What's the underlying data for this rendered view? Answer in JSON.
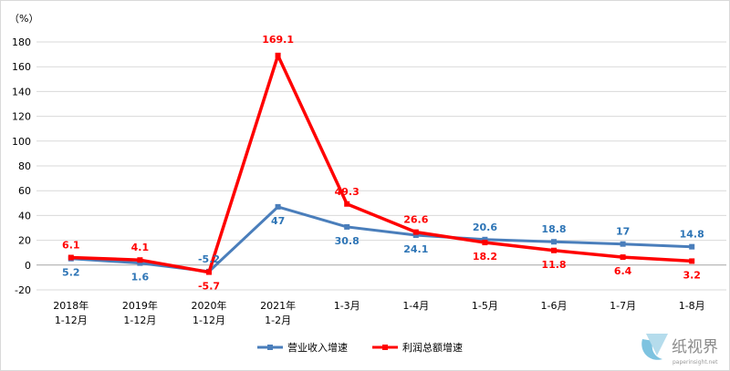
{
  "chart_data": {
    "type": "line",
    "ylabel": "（%）",
    "ylim": [
      -20,
      180
    ],
    "yticks": [
      -20,
      0,
      20,
      40,
      60,
      80,
      100,
      120,
      140,
      160,
      180
    ],
    "grid": true,
    "legend_position": "bottom",
    "categories": [
      [
        "2018年",
        "1-12月"
      ],
      [
        "2019年",
        "1-12月"
      ],
      [
        "2020年",
        "1-12月"
      ],
      [
        "2021年",
        "1-2月"
      ],
      [
        "1-3月"
      ],
      [
        "1-4月"
      ],
      [
        "1-5月"
      ],
      [
        "1-6月"
      ],
      [
        "1-7月"
      ],
      [
        "1-8月"
      ]
    ],
    "series": [
      {
        "name": "营业收入增速",
        "color": "#4a7ebb",
        "values": [
          5.2,
          1.6,
          -5.2,
          47,
          30.8,
          24.1,
          20.6,
          18.8,
          17,
          14.8
        ],
        "labels": [
          "5.2",
          "1.6",
          "-5.2",
          "47",
          "30.8",
          "24.1",
          "20.6",
          "18.8",
          "17",
          "14.8"
        ]
      },
      {
        "name": "利润总额增速",
        "color": "#ff0000",
        "values": [
          6.1,
          4.1,
          -5.7,
          169.1,
          49.3,
          26.6,
          18.2,
          11.8,
          6.4,
          3.2
        ],
        "labels": [
          "6.1",
          "4.1",
          "-5.7",
          "169.1",
          "49.3",
          "26.6",
          "18.2",
          "11.8",
          "6.4",
          "3.2"
        ]
      }
    ]
  },
  "watermark": {
    "brand": "纸视界",
    "site": "paperinsight.net"
  }
}
